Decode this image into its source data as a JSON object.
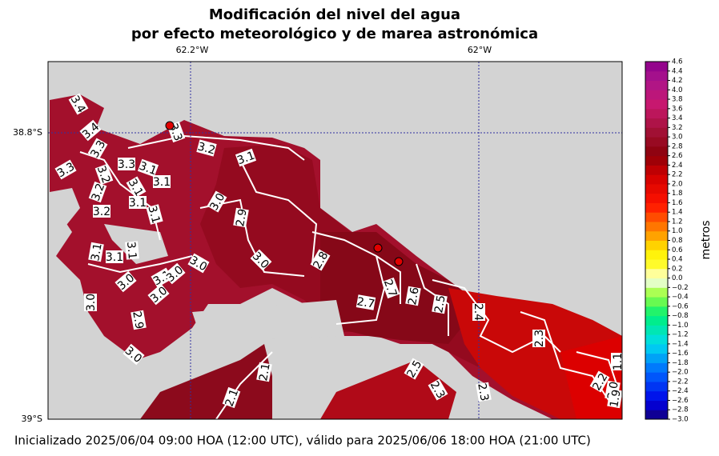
{
  "header": {
    "title": [
      "Modificación del nivel del agua",
      "por efecto meteorológico y de marea astronómica"
    ]
  },
  "map": {
    "lon_ticks": [
      "62.2°W",
      "62°W"
    ],
    "lat_ticks": [
      "38.8°S",
      "39°S"
    ],
    "contour_labels": [
      "3.4",
      "3.4",
      "3.3",
      "3.2",
      "3.1",
      "3.3",
      "3.3",
      "3.3",
      "3.1",
      "3.2",
      "3.1",
      "3.2",
      "3.1",
      "3.2",
      "3.1",
      "3.0",
      "2.9",
      "3.1",
      "3.1",
      "3.1",
      "3.1",
      "3.0",
      "3.0",
      "2.8",
      "3.0",
      "3.1",
      "3.0",
      "3.0",
      "3.0",
      "2.7",
      "2.6",
      "2.7",
      "2.5",
      "2.4",
      "2.9",
      "2.3",
      "3.0",
      "2.1",
      "2.5",
      "2.3",
      "2.3",
      "2.2",
      "2.0",
      "2.1",
      "1.9",
      "1.1"
    ]
  },
  "colorbar": {
    "label": "metros",
    "ticks": [
      {
        "value": -3.0,
        "label": "−3.0"
      },
      {
        "value": -2.8,
        "label": "−2.8"
      },
      {
        "value": -2.6,
        "label": "−2.6"
      },
      {
        "value": -2.4,
        "label": "−2.4"
      },
      {
        "value": -2.2,
        "label": "−2.2"
      },
      {
        "value": -2.0,
        "label": "−2.0"
      },
      {
        "value": -1.8,
        "label": "−1.8"
      },
      {
        "value": -1.6,
        "label": "−1.6"
      },
      {
        "value": -1.4,
        "label": "−1.4"
      },
      {
        "value": -1.2,
        "label": "−1.2"
      },
      {
        "value": -1.0,
        "label": "−1.0"
      },
      {
        "value": -0.8,
        "label": "−0.8"
      },
      {
        "value": -0.6,
        "label": "−0.6"
      },
      {
        "value": -0.4,
        "label": "−0.4"
      },
      {
        "value": -0.2,
        "label": "−0.2"
      },
      {
        "value": 0,
        "label": "0.0"
      },
      {
        "value": 0.2,
        "label": "0.2"
      },
      {
        "value": 0.4,
        "label": "0.4"
      },
      {
        "value": 0.6,
        "label": "0.6"
      },
      {
        "value": 0.8,
        "label": "0.8"
      },
      {
        "value": 1.0,
        "label": "1.0"
      },
      {
        "value": 1.2,
        "label": "1.2"
      },
      {
        "value": 1.4,
        "label": "1.4"
      },
      {
        "value": 1.6,
        "label": "1.6"
      },
      {
        "value": 1.8,
        "label": "1.8"
      },
      {
        "value": 2.0,
        "label": "2.0"
      },
      {
        "value": 2.2,
        "label": "2.2"
      },
      {
        "value": 2.4,
        "label": "2.4"
      },
      {
        "value": 2.6,
        "label": "2.6"
      },
      {
        "value": 2.8,
        "label": "2.8"
      },
      {
        "value": 3.0,
        "label": "3.0"
      },
      {
        "value": 3.2,
        "label": "3.2"
      },
      {
        "value": 3.4,
        "label": "3.4"
      },
      {
        "value": 3.6,
        "label": "3.6"
      },
      {
        "value": 3.8,
        "label": "3.8"
      },
      {
        "value": 4.0,
        "label": "4.0"
      },
      {
        "value": 4.2,
        "label": "4.2"
      },
      {
        "value": 4.4,
        "label": "4.4"
      },
      {
        "value": 4.6,
        "label": "4.6"
      }
    ]
  },
  "footer": {
    "text": "Inicializado 2025/06/04 09:00 HOA (12:00 UTC), válido para 2025/06/06 18:00 HOA (21:00 UTC)"
  }
}
